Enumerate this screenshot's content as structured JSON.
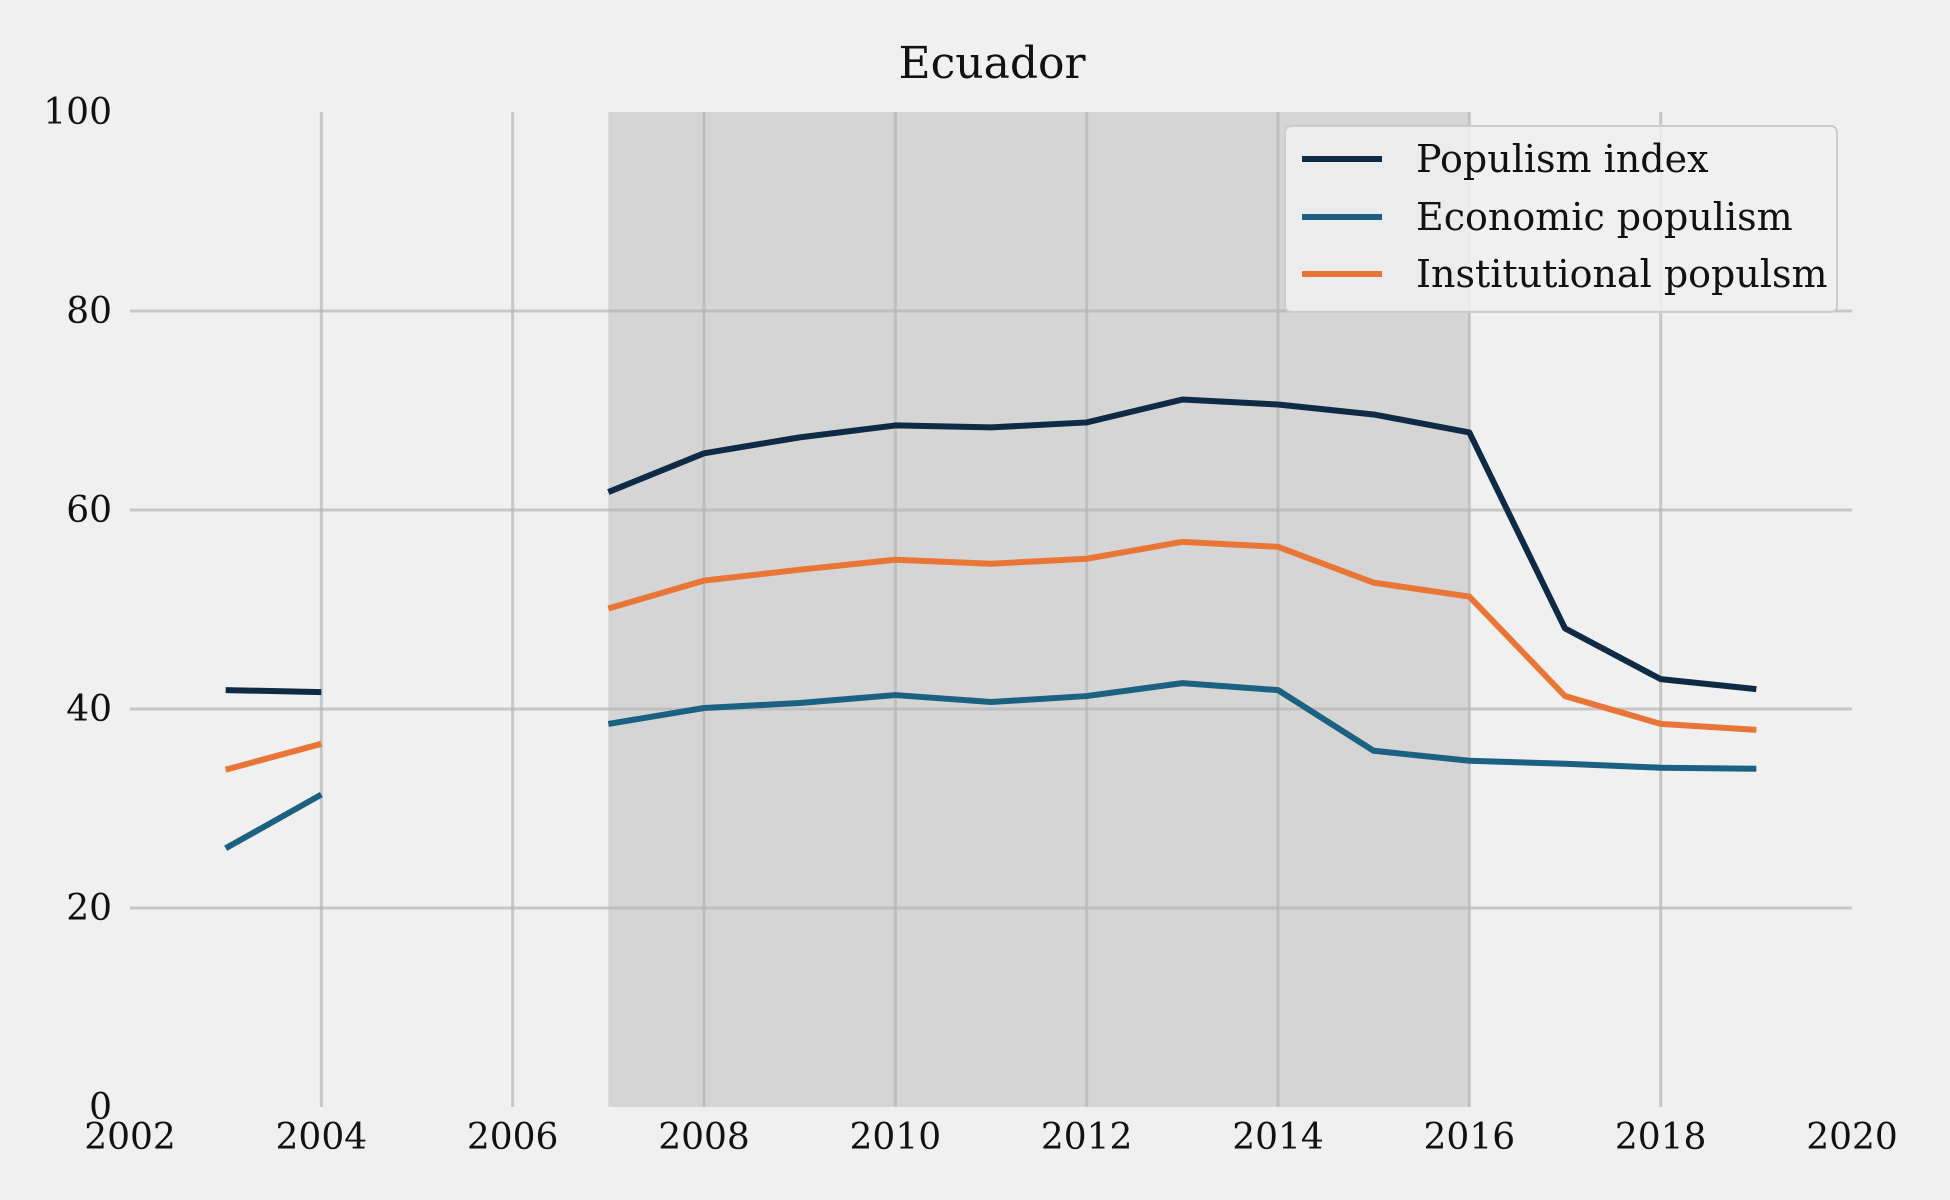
{
  "chart_data": {
    "type": "line",
    "title": "Ecuador",
    "xlabel": "",
    "ylabel": "",
    "xlim": [
      2002,
      2020
    ],
    "ylim": [
      0,
      100
    ],
    "xticks": [
      "2002",
      "2004",
      "2006",
      "2008",
      "2010",
      "2012",
      "2014",
      "2016",
      "2018",
      "2020"
    ],
    "yticks": [
      "0",
      "20",
      "40",
      "60",
      "80",
      "100"
    ],
    "grid": true,
    "legend_position": "top-right",
    "shaded_period": [
      2007,
      2016
    ],
    "series": [
      {
        "name": "Populism index",
        "color": "#0f2a45",
        "points": [
          [
            2003,
            41.9
          ],
          [
            2004,
            41.7
          ],
          [
            2007,
            61.8
          ],
          [
            2008,
            65.7
          ],
          [
            2009,
            67.3
          ],
          [
            2010,
            68.5
          ],
          [
            2011,
            68.3
          ],
          [
            2012,
            68.8
          ],
          [
            2013,
            71.1
          ],
          [
            2014,
            70.6
          ],
          [
            2015,
            69.6
          ],
          [
            2016,
            67.8
          ],
          [
            2017,
            48.1
          ],
          [
            2018,
            43.0
          ],
          [
            2019,
            42.0
          ]
        ]
      },
      {
        "name": "Economic populism",
        "color": "#1a6182",
        "points": [
          [
            2003,
            26.0
          ],
          [
            2004,
            31.4
          ],
          [
            2007,
            38.5
          ],
          [
            2008,
            40.1
          ],
          [
            2009,
            40.6
          ],
          [
            2010,
            41.4
          ],
          [
            2011,
            40.7
          ],
          [
            2012,
            41.3
          ],
          [
            2013,
            42.6
          ],
          [
            2014,
            41.9
          ],
          [
            2015,
            35.8
          ],
          [
            2016,
            34.8
          ],
          [
            2017,
            34.5
          ],
          [
            2018,
            34.1
          ],
          [
            2019,
            34.0
          ]
        ]
      },
      {
        "name": "Institutional populsm",
        "color": "#e97637",
        "points": [
          [
            2003,
            33.9
          ],
          [
            2004,
            36.5
          ],
          [
            2007,
            50.1
          ],
          [
            2008,
            52.9
          ],
          [
            2009,
            54.0
          ],
          [
            2010,
            55.0
          ],
          [
            2011,
            54.6
          ],
          [
            2012,
            55.1
          ],
          [
            2013,
            56.8
          ],
          [
            2014,
            56.3
          ],
          [
            2015,
            52.7
          ],
          [
            2016,
            51.3
          ],
          [
            2017,
            41.3
          ],
          [
            2018,
            38.5
          ],
          [
            2019,
            37.9
          ]
        ]
      }
    ]
  }
}
